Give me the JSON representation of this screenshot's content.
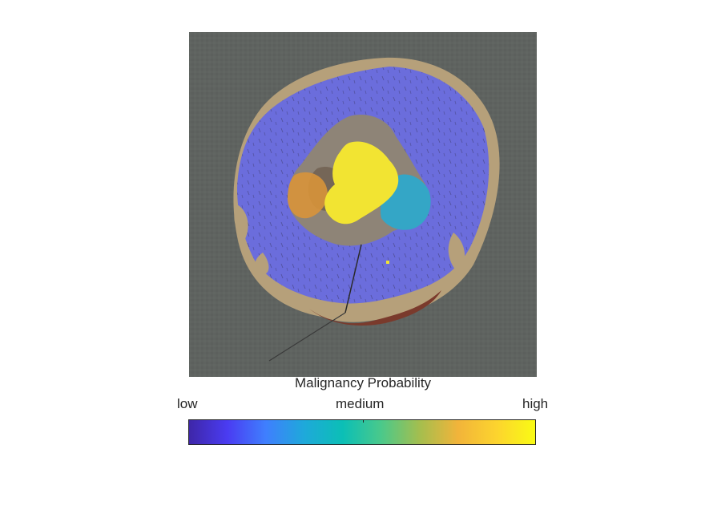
{
  "colorbar": {
    "title": "Malignancy Probability",
    "ticks": [
      "low",
      "medium",
      "high"
    ],
    "colormap": [
      "#3e26a8",
      "#4a3cf2",
      "#3f7ffe",
      "#1ea9da",
      "#0bbfb6",
      "#4bc98a",
      "#a5be4e",
      "#f2b43a",
      "#fcd42e",
      "#f9fb14"
    ]
  },
  "image": {
    "background_color": "#5f6360",
    "overlay_colors": {
      "low": "#6b6ddc",
      "mid": "#34a6c6",
      "orange": "#d8933a",
      "high": "#f2e432"
    }
  }
}
